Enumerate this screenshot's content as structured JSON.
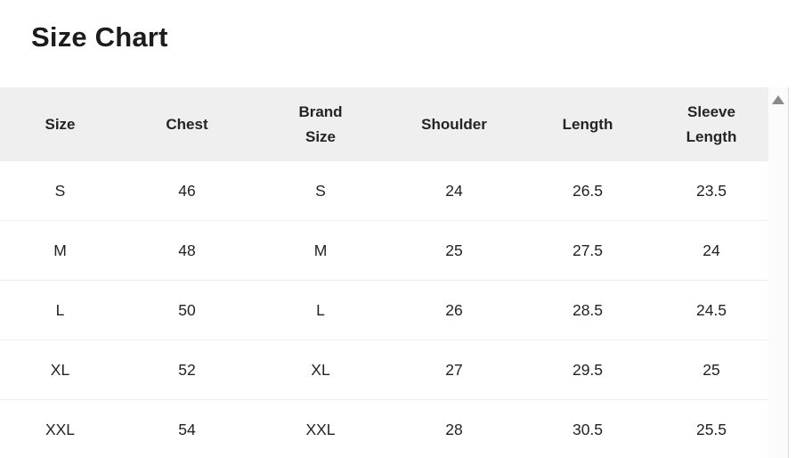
{
  "page": {
    "title": "Size Chart"
  },
  "table": {
    "columns": [
      {
        "label": "Size"
      },
      {
        "label": "Chest"
      },
      {
        "label": "Brand Size"
      },
      {
        "label": "Shoulder"
      },
      {
        "label": "Length"
      },
      {
        "label": "Sleeve Length"
      }
    ],
    "rows": [
      [
        "S",
        "46",
        "S",
        "24",
        "26.5",
        "23.5"
      ],
      [
        "M",
        "48",
        "M",
        "25",
        "27.5",
        "24"
      ],
      [
        "L",
        "50",
        "L",
        "26",
        "28.5",
        "24.5"
      ],
      [
        "XL",
        "52",
        "XL",
        "27",
        "29.5",
        "25"
      ],
      [
        "XXL",
        "54",
        "XXL",
        "28",
        "30.5",
        "25.5"
      ]
    ]
  },
  "scrollbar": {
    "icons": {
      "up": "triangle-up"
    }
  },
  "colors": {
    "header_bg": "#efefef",
    "divider": "#eeeeee",
    "text": "#222222",
    "title_text": "#1c1c1c",
    "border": "#d9d9d9",
    "arrow": "#8a8a8a",
    "track": "#fbfbfb"
  }
}
